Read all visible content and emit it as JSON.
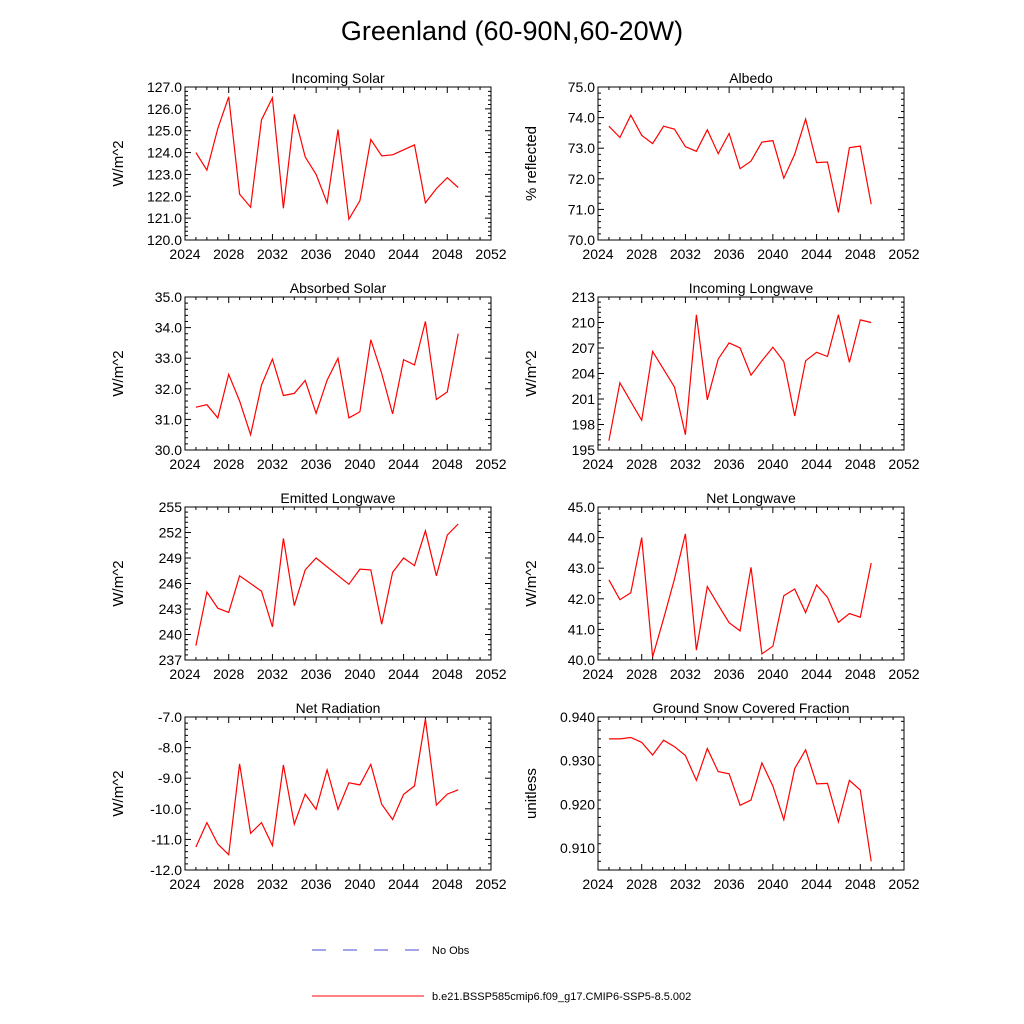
{
  "figure": {
    "title": "Greenland (60-90N,60-20W)",
    "legend": [
      {
        "label": "No Obs",
        "color": "#4a4ad0",
        "style": "dashed"
      },
      {
        "label": "b.e21.BSSP585cmip6.f09_g17.CMIP6-SSP5-8.5.002",
        "color": "#ff0000",
        "style": "solid"
      }
    ]
  },
  "chart_data": [
    {
      "type": "line",
      "title": "Incoming Solar",
      "ylabel": "W/m^2",
      "xlim": [
        2024,
        2052
      ],
      "ylim": [
        120,
        127
      ],
      "x_ticks": [
        2024,
        2028,
        2032,
        2036,
        2040,
        2044,
        2048,
        2052
      ],
      "y_ticks": [
        120,
        121,
        122,
        123,
        124,
        125,
        126,
        127
      ],
      "y_tick_labels": [
        "120.0",
        "121.0",
        "122.0",
        "123.0",
        "124.0",
        "125.0",
        "126.0",
        "127.0"
      ],
      "x": [
        2025,
        2026,
        2027,
        2028,
        2029,
        2030,
        2031,
        2032,
        2033,
        2034,
        2035,
        2036,
        2037,
        2038,
        2039,
        2040,
        2041,
        2042,
        2043,
        2045,
        2046,
        2047,
        2048,
        2049
      ],
      "series": [
        {
          "name": "b.e21.BSSP585cmip6.f09_g17.CMIP6-SSP5-8.5.002",
          "color": "#ff0000",
          "values": [
            124.0,
            123.2,
            125.1,
            126.55,
            122.1,
            121.5,
            125.5,
            126.5,
            121.45,
            125.75,
            123.8,
            123.0,
            121.7,
            125.05,
            120.95,
            121.8,
            124.6,
            123.85,
            123.9,
            124.35,
            121.7,
            122.35,
            122.85,
            122.4
          ]
        }
      ]
    },
    {
      "type": "line",
      "title": "Albedo",
      "ylabel": "% reflected",
      "xlim": [
        2024,
        2052
      ],
      "ylim": [
        70,
        75
      ],
      "x_ticks": [
        2024,
        2028,
        2032,
        2036,
        2040,
        2044,
        2048,
        2052
      ],
      "y_ticks": [
        70,
        71,
        72,
        73,
        74,
        75
      ],
      "y_tick_labels": [
        "70.0",
        "71.0",
        "72.0",
        "73.0",
        "74.0",
        "75.0"
      ],
      "x": [
        2025,
        2026,
        2027,
        2028,
        2029,
        2030,
        2031,
        2032,
        2033,
        2034,
        2035,
        2036,
        2037,
        2038,
        2039,
        2040,
        2041,
        2042,
        2043,
        2044,
        2045,
        2046,
        2047,
        2048,
        2049
      ],
      "series": [
        {
          "name": "b.e21.BSSP585cmip6.f09_g17.CMIP6-SSP5-8.5.002",
          "color": "#ff0000",
          "values": [
            73.72,
            73.35,
            74.08,
            73.42,
            73.15,
            73.72,
            73.62,
            73.05,
            72.9,
            73.6,
            72.82,
            73.48,
            72.33,
            72.58,
            73.2,
            73.25,
            72.02,
            72.8,
            73.95,
            72.53,
            72.55,
            70.9,
            73.02,
            73.07,
            71.17
          ]
        }
      ]
    },
    {
      "type": "line",
      "title": "Absorbed Solar",
      "ylabel": "W/m^2",
      "xlim": [
        2024,
        2052
      ],
      "ylim": [
        30,
        35
      ],
      "x_ticks": [
        2024,
        2028,
        2032,
        2036,
        2040,
        2044,
        2048,
        2052
      ],
      "y_ticks": [
        30,
        31,
        32,
        33,
        34,
        35
      ],
      "y_tick_labels": [
        "30.0",
        "31.0",
        "32.0",
        "33.0",
        "34.0",
        "35.0"
      ],
      "x": [
        2025,
        2026,
        2027,
        2028,
        2029,
        2030,
        2031,
        2032,
        2033,
        2034,
        2035,
        2036,
        2037,
        2038,
        2039,
        2040,
        2041,
        2042,
        2043,
        2044,
        2045,
        2046,
        2047,
        2048,
        2049
      ],
      "series": [
        {
          "name": "b.e21.BSSP585cmip6.f09_g17.CMIP6-SSP5-8.5.002",
          "color": "#ff0000",
          "values": [
            31.4,
            31.48,
            31.05,
            32.47,
            31.6,
            30.5,
            32.12,
            32.97,
            31.78,
            31.85,
            32.27,
            31.2,
            32.28,
            33.0,
            31.05,
            31.25,
            33.6,
            32.5,
            31.18,
            32.95,
            32.78,
            34.2,
            31.65,
            31.9,
            33.8
          ]
        }
      ]
    },
    {
      "type": "line",
      "title": "Incoming Longwave",
      "ylabel": "W/m^2",
      "xlim": [
        2024,
        2052
      ],
      "ylim": [
        195,
        213
      ],
      "x_ticks": [
        2024,
        2028,
        2032,
        2036,
        2040,
        2044,
        2048,
        2052
      ],
      "y_ticks": [
        195,
        198,
        201,
        204,
        207,
        210,
        213
      ],
      "y_tick_labels": [
        "195",
        "198",
        "201",
        "204",
        "207",
        "210",
        "213"
      ],
      "x": [
        2025,
        2026,
        2027,
        2028,
        2029,
        2030,
        2031,
        2032,
        2033,
        2034,
        2035,
        2036,
        2037,
        2038,
        2039,
        2040,
        2041,
        2042,
        2043,
        2044,
        2045,
        2046,
        2047,
        2048,
        2049
      ],
      "series": [
        {
          "name": "b.e21.BSSP585cmip6.f09_g17.CMIP6-SSP5-8.5.002",
          "color": "#ff0000",
          "values": [
            196.1,
            202.9,
            200.7,
            198.5,
            206.6,
            204.5,
            202.4,
            196.8,
            210.9,
            200.9,
            205.7,
            207.6,
            207.0,
            203.8,
            205.5,
            207.1,
            205.4,
            199.0,
            205.5,
            206.5,
            206.0,
            210.9,
            205.3,
            210.3,
            210.0
          ]
        }
      ]
    },
    {
      "type": "line",
      "title": "Emitted Longwave",
      "ylabel": "W/m^2",
      "xlim": [
        2024,
        2052
      ],
      "ylim": [
        237,
        255
      ],
      "x_ticks": [
        2024,
        2028,
        2032,
        2036,
        2040,
        2044,
        2048,
        2052
      ],
      "y_ticks": [
        237,
        240,
        243,
        246,
        249,
        252,
        255
      ],
      "y_tick_labels": [
        "237",
        "240",
        "243",
        "246",
        "249",
        "252",
        "255"
      ],
      "x": [
        2025,
        2026,
        2027,
        2028,
        2029,
        2030,
        2031,
        2032,
        2033,
        2034,
        2035,
        2036,
        2039,
        2040,
        2041,
        2042,
        2043,
        2044,
        2045,
        2046,
        2047,
        2048,
        2049
      ],
      "series": [
        {
          "name": "b.e21.BSSP585cmip6.f09_g17.CMIP6-SSP5-8.5.002",
          "color": "#ff0000",
          "values": [
            238.7,
            245.0,
            243.1,
            242.6,
            246.9,
            246.0,
            245.1,
            240.9,
            251.3,
            243.4,
            247.6,
            249.0,
            245.9,
            247.7,
            247.6,
            241.2,
            247.3,
            249.0,
            248.1,
            252.2,
            246.9,
            251.7,
            253.0
          ]
        }
      ]
    },
    {
      "type": "line",
      "title": "Net Longwave",
      "ylabel": "W/m^2",
      "xlim": [
        2024,
        2052
      ],
      "ylim": [
        40,
        45
      ],
      "x_ticks": [
        2024,
        2028,
        2032,
        2036,
        2040,
        2044,
        2048,
        2052
      ],
      "y_ticks": [
        40,
        41,
        42,
        43,
        44,
        45
      ],
      "y_tick_labels": [
        "40.0",
        "41.0",
        "42.0",
        "43.0",
        "44.0",
        "45.0"
      ],
      "x": [
        2025,
        2026,
        2027,
        2028,
        2029,
        2030,
        2031,
        2032,
        2033,
        2034,
        2035,
        2036,
        2037,
        2038,
        2039,
        2040,
        2041,
        2042,
        2043,
        2044,
        2045,
        2046,
        2047,
        2048,
        2049
      ],
      "series": [
        {
          "name": "b.e21.BSSP585cmip6.f09_g17.CMIP6-SSP5-8.5.002",
          "color": "#ff0000",
          "values": [
            42.62,
            41.97,
            42.2,
            44.0,
            40.1,
            41.35,
            42.65,
            44.12,
            40.32,
            42.4,
            41.8,
            41.22,
            40.95,
            43.03,
            40.2,
            40.45,
            42.1,
            42.32,
            41.55,
            42.45,
            42.05,
            41.23,
            41.52,
            41.4,
            43.17
          ]
        }
      ]
    },
    {
      "type": "line",
      "title": "Net Radiation",
      "ylabel": "W/m^2",
      "xlim": [
        2024,
        2052
      ],
      "ylim": [
        -12,
        -7
      ],
      "x_ticks": [
        2024,
        2028,
        2032,
        2036,
        2040,
        2044,
        2048,
        2052
      ],
      "y_ticks": [
        -12,
        -11,
        -10,
        -9,
        -8,
        -7
      ],
      "y_tick_labels": [
        "-12.0",
        "-11.0",
        "-10.0",
        "-9.0",
        "-8.0",
        "-7.0"
      ],
      "x": [
        2025,
        2026,
        2027,
        2028,
        2029,
        2030,
        2031,
        2032,
        2033,
        2034,
        2035,
        2036,
        2037,
        2038,
        2039,
        2040,
        2041,
        2042,
        2043,
        2044,
        2045,
        2046,
        2047,
        2048,
        2049
      ],
      "series": [
        {
          "name": "b.e21.BSSP585cmip6.f09_g17.CMIP6-SSP5-8.5.002",
          "color": "#ff0000",
          "values": [
            -11.25,
            -10.45,
            -11.15,
            -11.5,
            -8.53,
            -10.8,
            -10.45,
            -11.2,
            -8.57,
            -10.5,
            -9.52,
            -10.02,
            -8.73,
            -10.02,
            -9.15,
            -9.22,
            -8.55,
            -9.85,
            -10.35,
            -9.53,
            -9.25,
            -7.07,
            -9.88,
            -9.52,
            -9.38
          ]
        }
      ]
    },
    {
      "type": "line",
      "title": "Ground Snow Covered Fraction",
      "ylabel": "unitless",
      "xlim": [
        2024,
        2052
      ],
      "ylim": [
        0.905,
        0.94
      ],
      "x_ticks": [
        2024,
        2028,
        2032,
        2036,
        2040,
        2044,
        2048,
        2052
      ],
      "y_ticks": [
        0.91,
        0.92,
        0.93,
        0.94
      ],
      "y_tick_labels": [
        "0.910",
        "0.920",
        "0.930",
        "0.940"
      ],
      "x": [
        2025,
        2026,
        2027,
        2028,
        2029,
        2030,
        2031,
        2032,
        2033,
        2034,
        2035,
        2036,
        2037,
        2038,
        2039,
        2040,
        2041,
        2042,
        2043,
        2044,
        2045,
        2046,
        2047,
        2048,
        2049
      ],
      "series": [
        {
          "name": "b.e21.BSSP585cmip6.f09_g17.CMIP6-SSP5-8.5.002",
          "color": "#ff0000",
          "values": [
            0.935,
            0.935,
            0.9353,
            0.9342,
            0.9313,
            0.9347,
            0.9332,
            0.9312,
            0.9255,
            0.9328,
            0.9275,
            0.927,
            0.9198,
            0.921,
            0.9295,
            0.9242,
            0.9165,
            0.9282,
            0.9325,
            0.9247,
            0.9248,
            0.916,
            0.9255,
            0.9233,
            0.907
          ]
        }
      ]
    }
  ]
}
